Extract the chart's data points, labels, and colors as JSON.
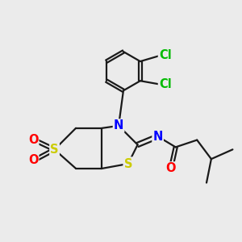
{
  "bg_color": "#ebebeb",
  "bond_color": "#1a1a1a",
  "bond_lw": 1.6,
  "atom_colors": {
    "S": "#cccc00",
    "N": "#0000ff",
    "O": "#ff0000",
    "Cl": "#00bb00"
  },
  "font_size_atom": 10.5
}
